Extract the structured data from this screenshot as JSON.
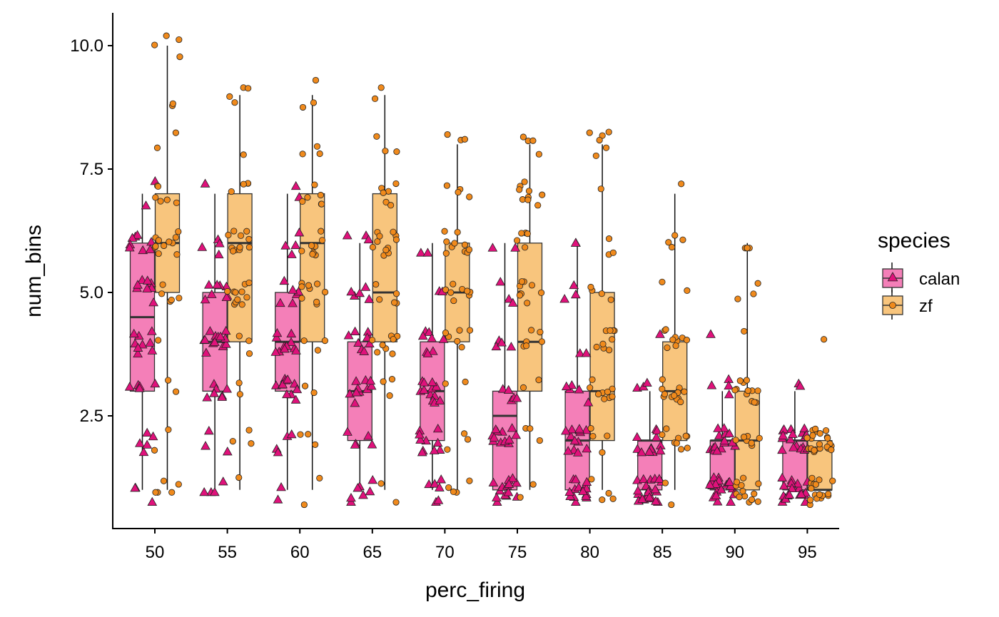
{
  "chart_data": {
    "type": "box",
    "xlabel": "perc_firing",
    "ylabel": "num_bins",
    "categories": [
      "50",
      "55",
      "60",
      "65",
      "70",
      "75",
      "80",
      "85",
      "90",
      "95"
    ],
    "y_ticks": [
      "2.5",
      "5.0",
      "7.5",
      "10.0"
    ],
    "ylim": [
      0.6,
      10.4
    ],
    "legend": {
      "title": "species",
      "position": "right",
      "entries": [
        {
          "name": "calan",
          "fill": "#f47fb8",
          "point_color": "#e0117b",
          "shape": "triangle"
        },
        {
          "name": "zf",
          "fill": "#f8c57d",
          "point_color": "#f08a1c",
          "shape": "circle"
        }
      ]
    },
    "series": [
      {
        "name": "calan",
        "boxes": [
          {
            "x": "50",
            "min": 1,
            "q1": 3,
            "median": 4.5,
            "q3": 6,
            "max": 7,
            "ymin_pts": 0.75,
            "ymax_pts": 7.25
          },
          {
            "x": "55",
            "min": 1,
            "q1": 3,
            "median": 4,
            "q3": 5,
            "max": 7,
            "ymin_pts": 0.95,
            "ymax_pts": 7.2
          },
          {
            "x": "60",
            "min": 1,
            "q1": 3,
            "median": 4,
            "q3": 5,
            "max": 7,
            "ymin_pts": 0.8,
            "ymax_pts": 7.15
          },
          {
            "x": "65",
            "min": 1,
            "q1": 2,
            "median": 3,
            "q3": 4,
            "max": 6,
            "ymin_pts": 0.75,
            "ymax_pts": 6.15
          },
          {
            "x": "70",
            "min": 1,
            "q1": 2,
            "median": 3,
            "q3": 4,
            "max": 6,
            "ymin_pts": 0.75,
            "ymax_pts": 5.8
          },
          {
            "x": "75",
            "min": 1,
            "q1": 1,
            "median": 2.5,
            "q3": 3,
            "max": 6,
            "ymin_pts": 0.75,
            "ymax_pts": 5.9
          },
          {
            "x": "80",
            "min": 1,
            "q1": 1,
            "median": 2,
            "q3": 3,
            "max": 6,
            "ymin_pts": 0.75,
            "ymax_pts": 6.0
          },
          {
            "x": "85",
            "min": 1,
            "q1": 1,
            "median": 2,
            "q3": 2,
            "max": 3,
            "ymin_pts": 0.75,
            "ymax_pts": 4.15
          },
          {
            "x": "90",
            "min": 1,
            "q1": 1,
            "median": 2,
            "q3": 2,
            "max": 3,
            "ymin_pts": 0.75,
            "ymax_pts": 4.15
          },
          {
            "x": "95",
            "min": 1,
            "q1": 1,
            "median": 2,
            "q3": 2,
            "max": 3,
            "ymin_pts": 0.75,
            "ymax_pts": 3.15
          }
        ]
      },
      {
        "name": "zf",
        "boxes": [
          {
            "x": "50",
            "min": 1,
            "q1": 5,
            "median": 6,
            "q3": 7,
            "max": 10,
            "ymin_pts": 0.95,
            "ymax_pts": 10.2
          },
          {
            "x": "55",
            "min": 1,
            "q1": 4,
            "median": 6,
            "q3": 7,
            "max": 9,
            "ymin_pts": 1.25,
            "ymax_pts": 9.15
          },
          {
            "x": "60",
            "min": 1,
            "q1": 4,
            "median": 6,
            "q3": 7,
            "max": 9,
            "ymin_pts": 0.7,
            "ymax_pts": 9.3
          },
          {
            "x": "65",
            "min": 1,
            "q1": 4,
            "median": 5,
            "q3": 7,
            "max": 9,
            "ymin_pts": 0.75,
            "ymax_pts": 9.15
          },
          {
            "x": "70",
            "min": 1,
            "q1": 4,
            "median": 5,
            "q3": 6,
            "max": 8,
            "ymin_pts": 0.95,
            "ymax_pts": 8.2
          },
          {
            "x": "75",
            "min": 1,
            "q1": 3,
            "median": 4,
            "q3": 6,
            "max": 8,
            "ymin_pts": 0.85,
            "ymax_pts": 8.15
          },
          {
            "x": "80",
            "min": 1,
            "q1": 2,
            "median": 3,
            "q3": 5,
            "max": 8,
            "ymin_pts": 0.8,
            "ymax_pts": 8.25
          },
          {
            "x": "85",
            "min": 1,
            "q1": 2,
            "median": 3,
            "q3": 4,
            "max": 7,
            "ymin_pts": 0.7,
            "ymax_pts": 7.2
          },
          {
            "x": "90",
            "min": 1,
            "q1": 1,
            "median": 2,
            "q3": 3,
            "max": 6,
            "ymin_pts": 0.75,
            "ymax_pts": 5.9
          },
          {
            "x": "95",
            "min": 1,
            "q1": 1,
            "median": 1,
            "q3": 2,
            "max": 2,
            "ymin_pts": 0.7,
            "ymax_pts": 4.05
          }
        ]
      }
    ]
  }
}
